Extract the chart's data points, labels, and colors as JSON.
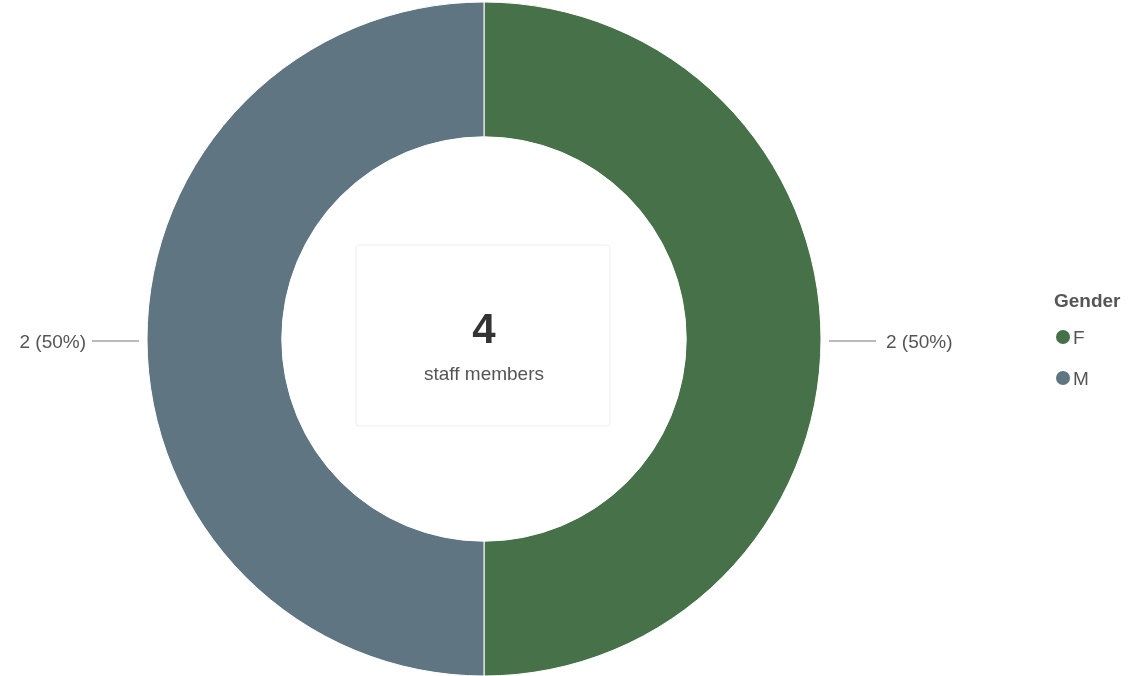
{
  "chart_data": {
    "type": "donut",
    "categories": [
      "F",
      "M"
    ],
    "values": [
      2,
      2
    ],
    "colors": [
      "#477148",
      "#5f7582"
    ],
    "value_labels": [
      "2 (50%)",
      "2 (50%)"
    ],
    "legend_title": "Gender",
    "legend": "right",
    "annotations": [
      "4",
      "staff members"
    ]
  }
}
